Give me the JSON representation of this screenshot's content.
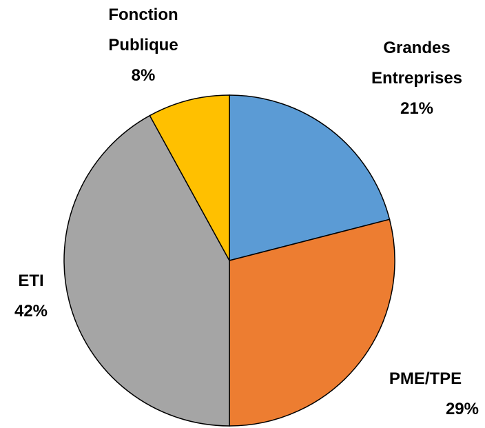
{
  "chart_data": {
    "type": "pie",
    "categories": [
      "Grandes Entreprises",
      "PME/TPE",
      "ETI",
      "Fonction Publique"
    ],
    "values": [
      21,
      29,
      42,
      8
    ],
    "value_labels": [
      "21%",
      "29%",
      "42%",
      "8%"
    ],
    "colors": [
      "#5b9bd5",
      "#ed7d31",
      "#a5a5a5",
      "#ffc000"
    ]
  }
}
